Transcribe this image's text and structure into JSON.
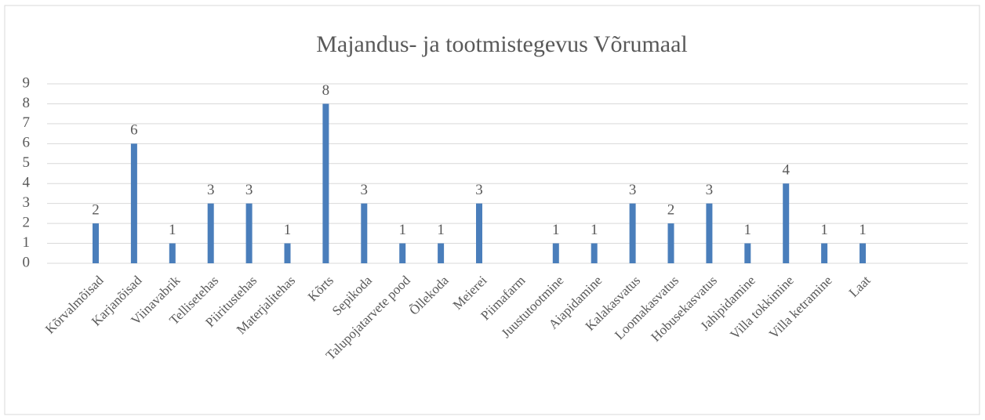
{
  "chart_data": {
    "type": "bar",
    "title": "Majandus- ja tootmistegevus Võrumaal",
    "categories": [
      "Kõrvalmõisad",
      "Karjanõisad",
      "Viinavabrik",
      "Tellisetehas",
      "Piiritustehas",
      "Materjalitehas",
      "Kõrts",
      "Sepikoda",
      "Talupojatarvete pood",
      "Õllekoda",
      "Meierei",
      "Piimafarm",
      "Juustutootmine",
      "Aiapidamine",
      "Kalakasvatus",
      "Loomakasvatus",
      "Hobusekasvatus",
      "Jahipidamine",
      "Villa tokkimine",
      "Villa ketramine",
      "Laat"
    ],
    "values": [
      2,
      6,
      1,
      3,
      3,
      1,
      8,
      3,
      1,
      1,
      3,
      null,
      1,
      1,
      3,
      2,
      3,
      1,
      4,
      1,
      1
    ],
    "color": "#4a7ebb",
    "ylim": [
      0,
      9
    ],
    "yticks": [
      0,
      1,
      2,
      3,
      4,
      5,
      6,
      7,
      8,
      9
    ],
    "grid": true
  }
}
